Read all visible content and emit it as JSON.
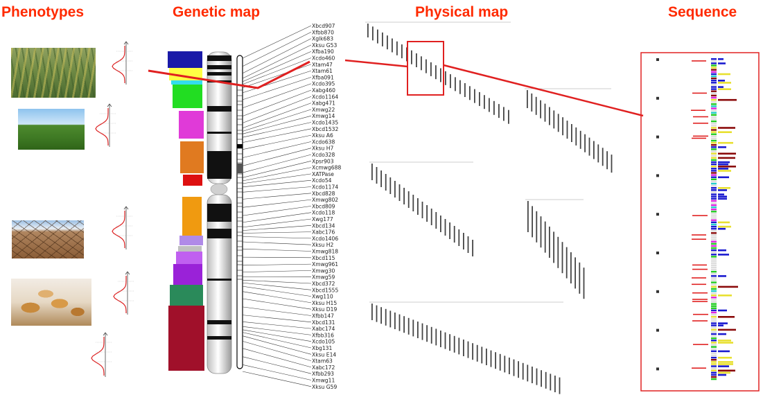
{
  "headings": {
    "phenotypes": "Phenotypes",
    "genetic_map": "Genetic map",
    "physical_map": "Physical map",
    "sequence": "Sequence"
  },
  "colors": {
    "heading": "#ff2a00",
    "highlight": "#e02020",
    "bin_colors": [
      "#1a1aa8",
      "#ffff44",
      "#33ddee",
      "#22dd22",
      "#e03ad8",
      "#e07a20",
      "#dd1010",
      "#f09a10",
      "#b08ae8",
      "#c0c0c0",
      "#c060f0",
      "#9a22d8",
      "#2a8a5a",
      "#a0102a"
    ]
  },
  "photos": [
    {
      "name": "wheat-field-closeup-photo",
      "icon": "wheat-ears-photo"
    },
    {
      "name": "green-field-photo",
      "icon": "field-sky-photo"
    },
    {
      "name": "drought-cracked-earth-photo",
      "icon": "cracked-earth-photo"
    },
    {
      "name": "bread-basket-photo",
      "icon": "bread-loaves-photo"
    }
  ],
  "markers": [
    "Xbcd907",
    "Xfbb870",
    "Xglk683",
    "Xksu G53",
    "Xfba190",
    "Xcdo460",
    "Xtam47",
    "Xtam61",
    "Xfba091",
    "Xcdo395",
    "Xabg460",
    "Xcdo1164",
    "Xabg471",
    "Xmwg22",
    "Xmwg14",
    "Xcdo1435",
    "Xbcd1532",
    "Xksu A6",
    "Xcdo638",
    "Xksu H7",
    "Xcdo328",
    "Xpsr903",
    "Xcmwg688",
    "XATPase",
    "Xcdo54",
    "Xcdo1174",
    "Xbcd828",
    "Xmwg802",
    "Xbcd809",
    "Xcdo118",
    "Xwg177",
    "Xbcd134",
    "Xabc176",
    "Xcdo1406",
    "Xksu H2",
    "Xmwg818",
    "Xbcd115",
    "Xmwg961",
    "Xmwg30",
    "Xmwg59",
    "Xbcd372",
    "Xbcd1555",
    "Xwg110",
    "Xksu H15",
    "Xksu D19",
    "Xfbb147",
    "Xbcd131",
    "Xabc174",
    "Xfbb316",
    "Xcdo105",
    "Xbg131",
    "Xksu E14",
    "Xtam63",
    "Xabc172",
    "Xfbb293",
    "Xmwg11",
    "Xksu G59"
  ]
}
